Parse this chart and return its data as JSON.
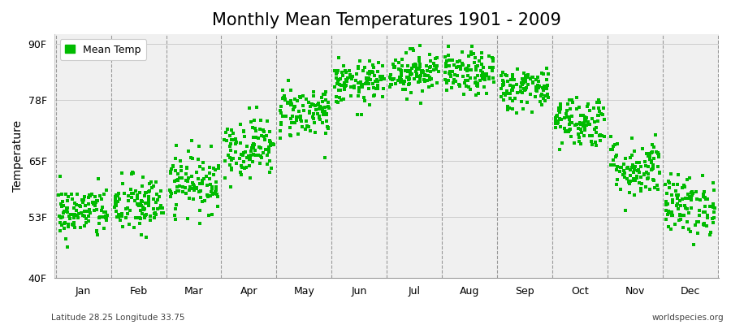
{
  "title": "Monthly Mean Temperatures 1901 - 2009",
  "ylabel": "Temperature",
  "xlabel": "",
  "subtitle_left": "Latitude 28.25 Longitude 33.75",
  "subtitle_right": "worldspecies.org",
  "legend_label": "Mean Temp",
  "dot_color": "#00bb00",
  "background_color": "#f0f0f0",
  "figure_background": "#ffffff",
  "ylim": [
    40,
    92
  ],
  "yticks": [
    40,
    53,
    65,
    78,
    90
  ],
  "ytick_labels": [
    "40F",
    "53F",
    "65F",
    "78F",
    "90F"
  ],
  "months": [
    "Jan",
    "Feb",
    "Mar",
    "Apr",
    "May",
    "Jun",
    "Jul",
    "Aug",
    "Sep",
    "Oct",
    "Nov",
    "Dec"
  ],
  "mean_temps_F": [
    54.0,
    55.5,
    60.5,
    68.0,
    75.5,
    81.5,
    84.0,
    83.5,
    80.5,
    73.5,
    63.5,
    55.5
  ],
  "std_temps_F": [
    2.8,
    3.2,
    3.2,
    3.2,
    2.8,
    2.3,
    2.3,
    2.3,
    2.3,
    2.8,
    3.2,
    3.2
  ],
  "n_years": 109,
  "title_fontsize": 15,
  "axis_fontsize": 10,
  "tick_fontsize": 9,
  "dot_size": 5,
  "vline_color": "#999999",
  "hline_color": "#cccccc"
}
